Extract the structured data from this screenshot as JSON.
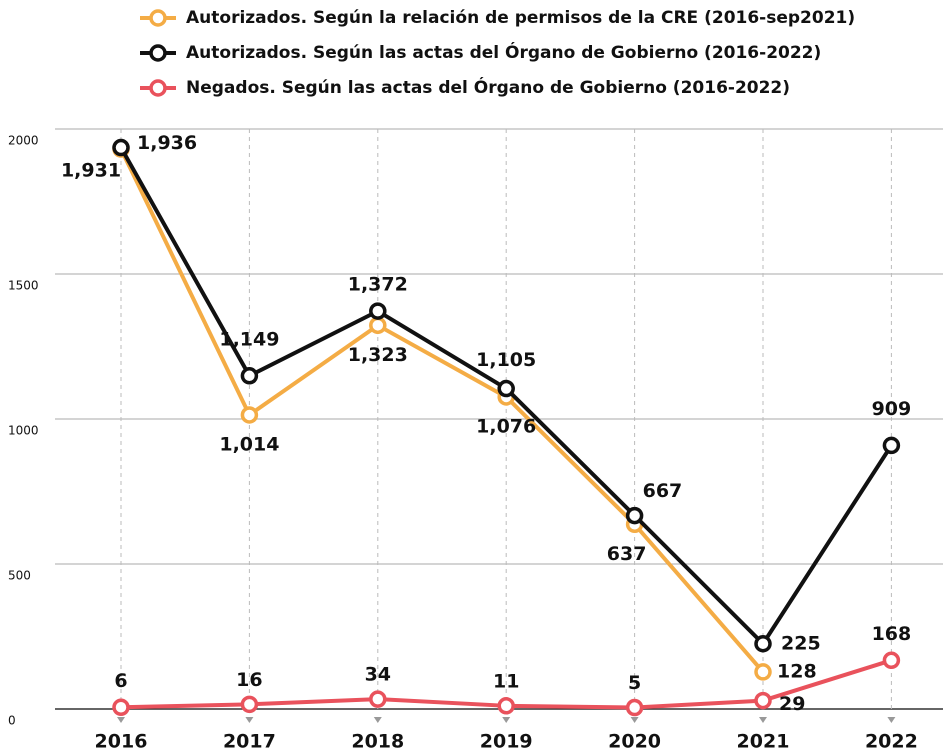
{
  "chart_data": {
    "type": "line",
    "categories": [
      "2016",
      "2017",
      "2018",
      "2019",
      "2020",
      "2021",
      "2022"
    ],
    "series": [
      {
        "name": "Autorizados. Según la relación de permisos de la CRE (2016-sep2021)",
        "color": "#f4ac45",
        "values": [
          1931,
          1014,
          1323,
          1076,
          637,
          128,
          null
        ],
        "value_labels": [
          "1,931",
          "1,014",
          "1,323",
          "1,076",
          "637",
          "128",
          null
        ]
      },
      {
        "name": "Autorizados. Según las actas del Órgano de Gobierno (2016-2022)",
        "color": "#111111",
        "values": [
          1936,
          1149,
          1372,
          1105,
          667,
          225,
          909
        ],
        "value_labels": [
          "1,936",
          "1,149",
          "1,372",
          "1,105",
          "667",
          "225",
          "909"
        ]
      },
      {
        "name": "Negados. Según las actas del Órgano de Gobierno (2016-2022)",
        "color": "#e9525c",
        "values": [
          6,
          16,
          34,
          11,
          5,
          29,
          168
        ]
      }
    ],
    "ylim": [
      0,
      2000
    ],
    "yticks": [
      0,
      500,
      1000,
      1500,
      2000
    ],
    "grid": true
  }
}
